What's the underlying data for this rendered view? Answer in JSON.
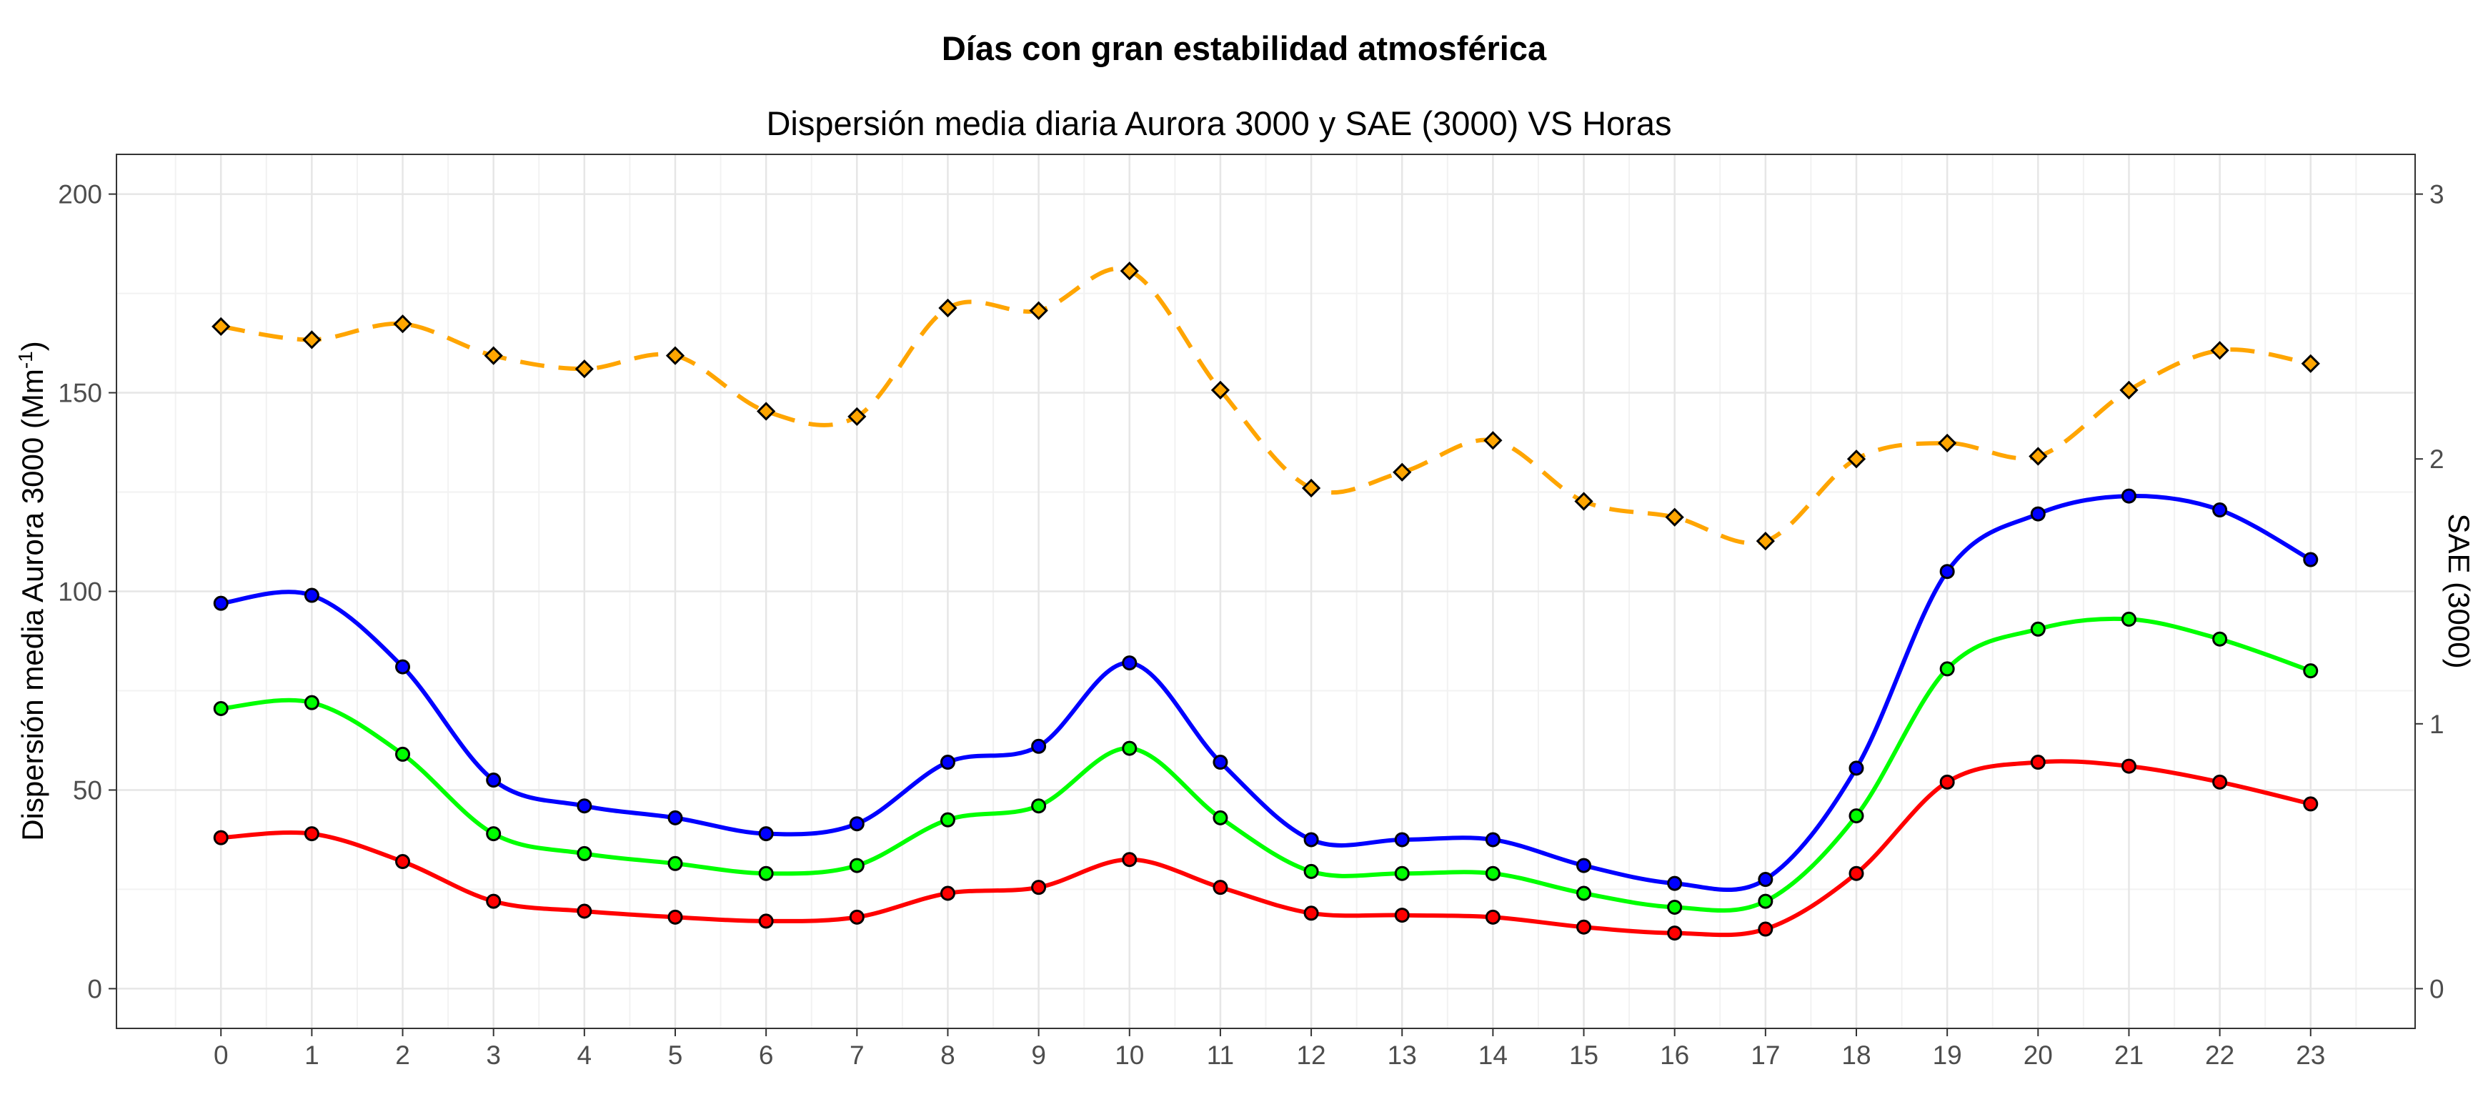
{
  "chart_data": {
    "type": "line",
    "title": "Días con gran estabilidad atmosférica",
    "subtitle": "Dispersión media diaria Aurora 3000 y SAE (3000) VS Horas",
    "ylabel": "Dispersión media Aurora 3000 (Mm",
    "ylabel_sup": "-1",
    "ylabel_close": ")",
    "y2label": "SAE (3000)",
    "xlim": [
      -1.15,
      24.15
    ],
    "ylim": [
      -10,
      210
    ],
    "y2lim": [
      -0.15,
      3.15
    ],
    "grid": true,
    "x": [
      0,
      1,
      2,
      3,
      4,
      5,
      6,
      7,
      8,
      9,
      10,
      11,
      12,
      13,
      14,
      15,
      16,
      17,
      18,
      19,
      20,
      21,
      22,
      23
    ],
    "x_ticks": [
      "0",
      "1",
      "2",
      "3",
      "4",
      "5",
      "6",
      "7",
      "8",
      "9",
      "10",
      "11",
      "12",
      "13",
      "14",
      "15",
      "16",
      "17",
      "18",
      "19",
      "20",
      "21",
      "22",
      "23"
    ],
    "y_ticks": [
      "0",
      "50",
      "100",
      "150",
      "200"
    ],
    "y2_ticks": [
      "0",
      "1",
      "2",
      "3"
    ],
    "series": [
      {
        "axis": "left",
        "color": "#0000ff",
        "dash": false,
        "marker": "circle",
        "values": [
          97,
          99,
          81,
          52.5,
          46,
          43,
          39,
          41.5,
          57,
          61,
          82,
          57,
          37.5,
          37.5,
          37.5,
          31,
          26.5,
          27.5,
          55.5,
          105,
          119.5,
          124,
          120.5,
          108
        ]
      },
      {
        "axis": "left",
        "color": "#00ff00",
        "dash": false,
        "marker": "circle",
        "values": [
          70.5,
          72,
          59,
          39,
          34,
          31.5,
          29,
          31,
          42.5,
          46,
          60.5,
          43,
          29.5,
          29,
          29,
          24,
          20.5,
          22,
          43.5,
          80.5,
          90.5,
          93,
          88,
          80
        ]
      },
      {
        "axis": "left",
        "color": "#ff0000",
        "dash": false,
        "marker": "circle",
        "values": [
          38,
          39,
          32,
          22,
          19.5,
          18,
          17,
          18,
          24,
          25.5,
          32.5,
          25.5,
          19,
          18.5,
          18,
          15.5,
          14,
          15,
          29,
          52,
          57,
          56,
          52,
          46.5
        ]
      },
      {
        "axis": "right",
        "color": "#ffa500",
        "dash": true,
        "marker": "diamond",
        "values": [
          2.5,
          2.45,
          2.51,
          2.39,
          2.34,
          2.39,
          2.18,
          2.16,
          2.57,
          2.56,
          2.71,
          2.26,
          1.89,
          1.95,
          2.07,
          1.84,
          1.78,
          1.69,
          2.0,
          2.06,
          2.01,
          2.26,
          2.41,
          2.36
        ]
      }
    ]
  }
}
